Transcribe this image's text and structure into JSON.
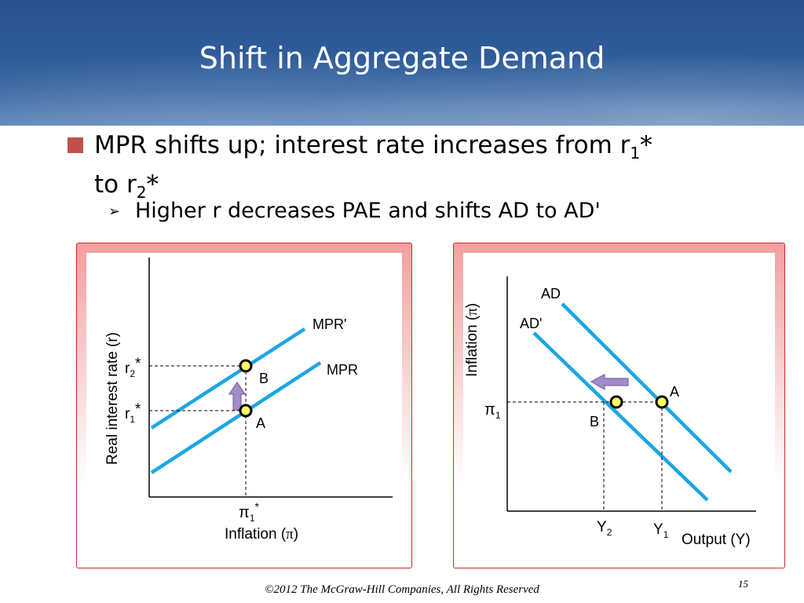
{
  "title": "Shift in Aggregate Demand",
  "bullet": {
    "line1_pre": "MPR shifts up; interest rate increases from r",
    "line1_sub": "1",
    "line1_star": "*",
    "line2_pre": "to r",
    "line2_sub": "2",
    "line2_star": "*"
  },
  "sub_bullet": "Higher r decreases PAE  and shifts AD to AD'",
  "left_graph": {
    "ylabel": "Real interest rate (r)",
    "xlabel_pre": "Inflation (",
    "xlabel_sym": "π",
    "xlabel_post": ")",
    "curve_mpr": "MPR",
    "curve_mpr_shifted": "MPR'",
    "r2_base": "r",
    "r2_sub": "2",
    "r2_star": "*",
    "r1_base": "r",
    "r1_sub": "1",
    "r1_star": "*",
    "pi_base": "π",
    "pi_sub": "1",
    "pi_star": "*",
    "point_a": "A",
    "point_b": "B"
  },
  "right_graph": {
    "ylabel_pre": "Inflation (",
    "ylabel_sym": "π",
    "ylabel_post": ")",
    "xlabel": "Output (Y)",
    "curve_ad": "AD",
    "curve_ad_shifted": "AD'",
    "pi_base": "π",
    "pi_sub": "1",
    "y2_base": "Y",
    "y2_sub": "2",
    "y1_base": "Y",
    "y1_sub": "1",
    "point_a": "A",
    "point_b": "B"
  },
  "footer": "©2012 The McGraw-Hill Companies, All Rights Reserved",
  "page_number": "15",
  "colors": {
    "header_blue": "#2f5c9a",
    "bullet_square": "#c0504d",
    "curve": "#1aa6e4",
    "point_fill": "#ffff66",
    "arrow_fill": "#a38cc8",
    "frame_red": "#d4292c"
  }
}
